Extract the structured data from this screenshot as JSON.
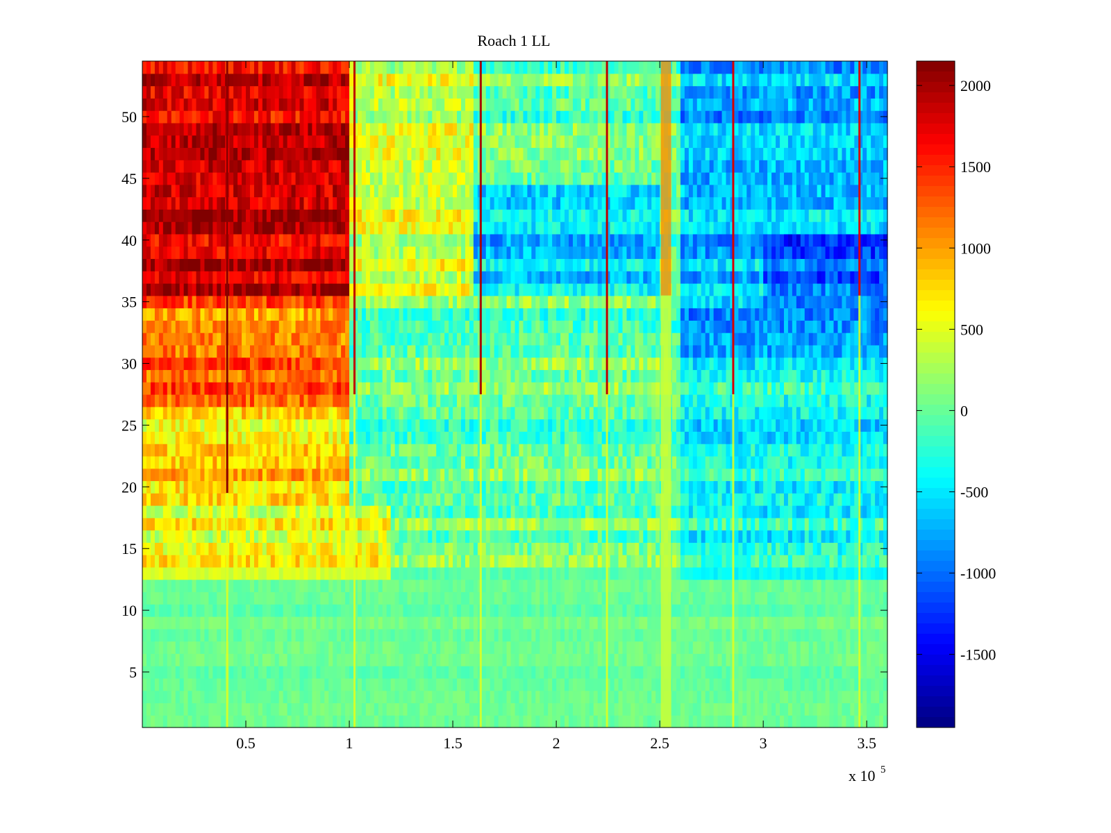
{
  "chart_data": [
    {
      "type": "heatmap",
      "title": "Roach 1 LL",
      "xlabel": "",
      "ylabel": "",
      "x_exponent_label": "x 10",
      "x_exponent_sup": "5",
      "xlim": [
        0,
        3.6
      ],
      "ylim": [
        0.5,
        54.5
      ],
      "x_ticks": [
        0.5,
        1,
        1.5,
        2,
        2.5,
        3,
        3.5
      ],
      "x_tick_labels": [
        "0.5",
        "1",
        "1.5",
        "2",
        "2.5",
        "3",
        "3.5"
      ],
      "y_ticks": [
        5,
        10,
        15,
        20,
        25,
        30,
        35,
        40,
        45,
        50
      ],
      "y_tick_labels": [
        "5",
        "10",
        "15",
        "20",
        "25",
        "30",
        "35",
        "40",
        "45",
        "50"
      ],
      "rows": 54,
      "colormap": "jet",
      "grid": false,
      "vertical_bands": [
        {
          "x": 0.41,
          "top_value": 2100,
          "lower_value": 500,
          "change_row": 19
        },
        {
          "x": 1.025,
          "top_value": 1900,
          "lower_value": 500,
          "change_row": 27
        },
        {
          "x": 1.635,
          "top_value": 2000,
          "lower_value": 500,
          "change_row": 27
        },
        {
          "x": 2.245,
          "top_value": 1900,
          "lower_value": 500,
          "change_row": 27
        },
        {
          "x": 2.855,
          "top_value": 1800,
          "lower_value": 500,
          "change_row": 27
        },
        {
          "x": 3.465,
          "top_value": 1800,
          "lower_value": 500,
          "change_row": 35
        },
        {
          "x": 2.53,
          "top_value": 1100,
          "lower_value": 400,
          "change_row": 35,
          "width": 0.05
        }
      ],
      "regions": [
        {
          "x_range": [
            0,
            1.0
          ],
          "y_range": [
            36,
            54
          ],
          "value": 1800
        },
        {
          "x_range": [
            0,
            1.0
          ],
          "y_range": [
            27,
            35
          ],
          "value": 1200
        },
        {
          "x_range": [
            0,
            1.0
          ],
          "y_range": [
            19,
            26
          ],
          "value": 800
        },
        {
          "x_range": [
            0,
            1.2
          ],
          "y_range": [
            13,
            18
          ],
          "value": 500
        },
        {
          "x_range": [
            1.0,
            1.6
          ],
          "y_range": [
            36,
            54
          ],
          "value": 400
        },
        {
          "x_range": [
            1.6,
            2.5
          ],
          "y_range": [
            36,
            44
          ],
          "value": -600
        },
        {
          "x_range": [
            2.6,
            3.6
          ],
          "y_range": [
            30,
            54
          ],
          "value": -700
        },
        {
          "x_range": [
            3.0,
            3.6
          ],
          "y_range": [
            35,
            40
          ],
          "value": -1100
        },
        {
          "x_range": [
            2.6,
            3.6
          ],
          "y_range": [
            12,
            29
          ],
          "value": -350
        },
        {
          "x_range": [
            0,
            3.6
          ],
          "y_range": [
            0,
            12
          ],
          "value": 0
        }
      ],
      "colorbar": {
        "min": -1950,
        "max": 2150,
        "ticks": [
          -1500,
          -1000,
          -500,
          0,
          500,
          1000,
          1500,
          2000
        ],
        "tick_labels": [
          "-1500",
          "-1000",
          "-500",
          "0",
          "500",
          "1000",
          "1500",
          "2000"
        ]
      }
    }
  ]
}
